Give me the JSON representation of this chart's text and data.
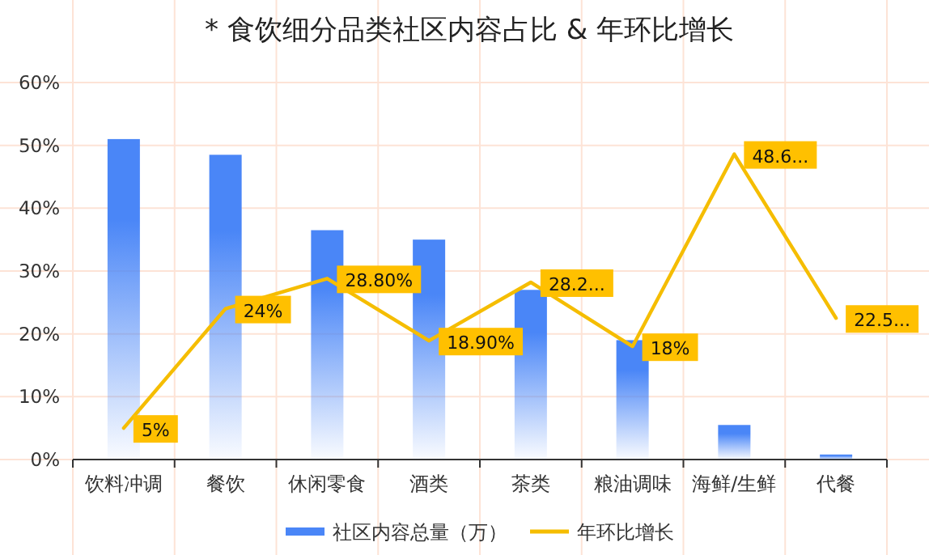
{
  "chart_data": {
    "type": "bar",
    "title": "* 食饮细分品类社区内容占比 & 年环比增长",
    "categories": [
      "饮料冲调",
      "餐饮",
      "休闲零食",
      "酒类",
      "茶类",
      "粮油调味",
      "海鲜/生鲜",
      "代餐"
    ],
    "series": [
      {
        "name": "社区内容总量（万）",
        "color": "#4a86f7",
        "values": [
          51,
          48.5,
          36.5,
          35,
          27,
          19,
          5.5,
          0.8
        ]
      },
      {
        "name": "年环比增长",
        "type": "line",
        "color": "#f5bd00",
        "values": [
          5,
          24,
          28.8,
          18.9,
          28.2,
          18,
          48.6,
          22.5
        ],
        "value_labels": [
          "5%",
          "24%",
          "28.80%",
          "18.90%",
          "28.2...",
          "18%",
          "48.6...",
          "22.5..."
        ]
      }
    ],
    "ylim": [
      0,
      60
    ],
    "yticks": [
      {
        "value": 0,
        "label": "0%"
      },
      {
        "value": 10,
        "label": "10%"
      },
      {
        "value": 20,
        "label": "20%"
      },
      {
        "value": 30,
        "label": "30%"
      },
      {
        "value": 40,
        "label": "40%"
      },
      {
        "value": 50,
        "label": "50%"
      },
      {
        "value": 60,
        "label": "60%"
      }
    ],
    "grid": true,
    "legend": "bottom",
    "marker": "none"
  }
}
